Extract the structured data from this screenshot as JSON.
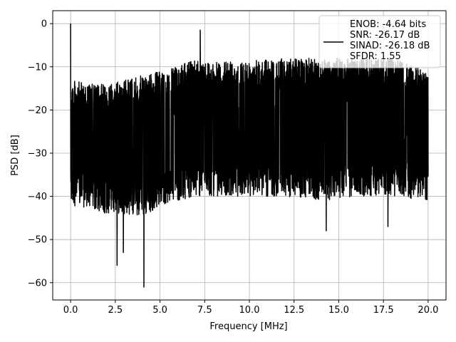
{
  "chart_data": {
    "type": "line",
    "title": "",
    "xlabel": "Frequency [MHz]",
    "ylabel": "PSD [dB]",
    "xlim": [
      -1.0,
      21.0
    ],
    "ylim": [
      -64.0,
      3.0
    ],
    "x_ticks": [
      0.0,
      2.5,
      5.0,
      7.5,
      10.0,
      12.5,
      15.0,
      17.5,
      20.0
    ],
    "x_tick_labels": [
      "0.0",
      "2.5",
      "5.0",
      "7.5",
      "10.0",
      "12.5",
      "15.0",
      "17.5",
      "20.0"
    ],
    "y_ticks": [
      0,
      -10,
      -20,
      -30,
      -40,
      -50,
      -60
    ],
    "y_tick_labels": [
      "0",
      "−10",
      "−20",
      "−30",
      "−40",
      "−50",
      "−60"
    ],
    "grid": true,
    "legend_position": "top-right",
    "color": "#000000",
    "series": [
      {
        "name": "ENOB: -4.64 bits\nSNR: -26.17 dB\nSINAD: -26.18 dB\nSFDR: 1.55",
        "x_range": [
          0.0,
          20.0
        ],
        "features": [
          {
            "x": 0.0,
            "y": 0.0
          },
          {
            "x": 0.05,
            "y": -25.0
          },
          {
            "x": 2.6,
            "y": -56.0
          },
          {
            "x": 2.95,
            "y": -53.0
          },
          {
            "x": 4.1,
            "y": -61.0
          },
          {
            "x": 7.25,
            "y": -1.5
          },
          {
            "x": 14.3,
            "y": -48.0
          },
          {
            "x": 17.75,
            "y": -47.0
          }
        ],
        "envelope": [
          {
            "x": 0.0,
            "top": -13.0,
            "bottom": -42.0
          },
          {
            "x": 1.0,
            "top": -14.0,
            "bottom": -43.0
          },
          {
            "x": 2.0,
            "top": -14.0,
            "bottom": -44.0
          },
          {
            "x": 3.0,
            "top": -13.0,
            "bottom": -44.0
          },
          {
            "x": 4.0,
            "top": -12.0,
            "bottom": -45.0
          },
          {
            "x": 5.0,
            "top": -11.0,
            "bottom": -42.0
          },
          {
            "x": 6.0,
            "top": -10.0,
            "bottom": -41.0
          },
          {
            "x": 7.0,
            "top": -8.0,
            "bottom": -40.0
          },
          {
            "x": 8.0,
            "top": -9.0,
            "bottom": -40.0
          },
          {
            "x": 10.0,
            "top": -8.5,
            "bottom": -40.0
          },
          {
            "x": 12.0,
            "top": -8.0,
            "bottom": -40.0
          },
          {
            "x": 14.0,
            "top": -8.0,
            "bottom": -41.0
          },
          {
            "x": 16.0,
            "top": -8.0,
            "bottom": -40.0
          },
          {
            "x": 18.0,
            "top": -8.0,
            "bottom": -40.0
          },
          {
            "x": 20.0,
            "top": -11.0,
            "bottom": -41.0
          }
        ]
      }
    ]
  }
}
